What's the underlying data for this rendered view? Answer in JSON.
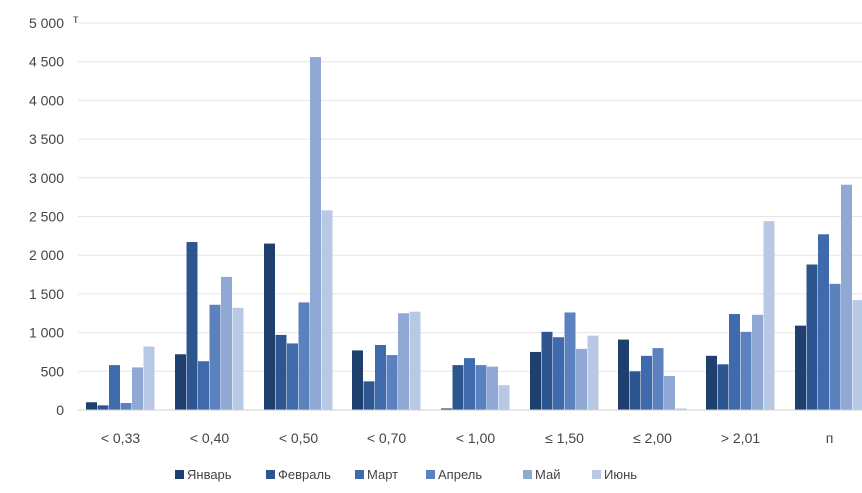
{
  "chart_data": {
    "type": "bar",
    "unit_label": "т",
    "categories": [
      "< 0,33",
      "< 0,40",
      "< 0,50",
      "< 0,70",
      "< 1,00",
      "≤ 1,50",
      "≤ 2,00",
      "> 2,01",
      "п"
    ],
    "series": [
      {
        "name": "Январь",
        "color": "#1f3f6e",
        "values": [
          100,
          720,
          2150,
          770,
          20,
          750,
          910,
          700,
          1090
        ]
      },
      {
        "name": "Февраль",
        "color": "#2d5590",
        "values": [
          60,
          2170,
          970,
          370,
          580,
          1010,
          500,
          590,
          1880
        ]
      },
      {
        "name": "Март",
        "color": "#3f6aab",
        "values": [
          580,
          630,
          860,
          840,
          670,
          940,
          700,
          1240,
          2270
        ]
      },
      {
        "name": "Апрель",
        "color": "#5b82bf",
        "values": [
          90,
          1360,
          1390,
          710,
          580,
          1260,
          800,
          1010,
          1630
        ]
      },
      {
        "name": "Май",
        "color": "#8fa9d4",
        "values": [
          550,
          1720,
          4560,
          1250,
          560,
          790,
          440,
          1230,
          2910
        ]
      },
      {
        "name": "Июнь",
        "color": "#b8c9e6",
        "values": [
          820,
          1320,
          2580,
          1270,
          320,
          960,
          20,
          2440,
          1420
        ]
      }
    ],
    "ylim": [
      0,
      5000
    ],
    "yticks": [
      "0",
      "500",
      "1 000",
      "1 500",
      "2 000",
      "2 500",
      "3 000",
      "3 500",
      "4 000",
      "4 500",
      "5 000"
    ],
    "ytick_values": [
      0,
      500,
      1000,
      1500,
      2000,
      2500,
      3000,
      3500,
      4000,
      4500,
      5000
    ],
    "grid": true,
    "legend_position": "bottom"
  }
}
